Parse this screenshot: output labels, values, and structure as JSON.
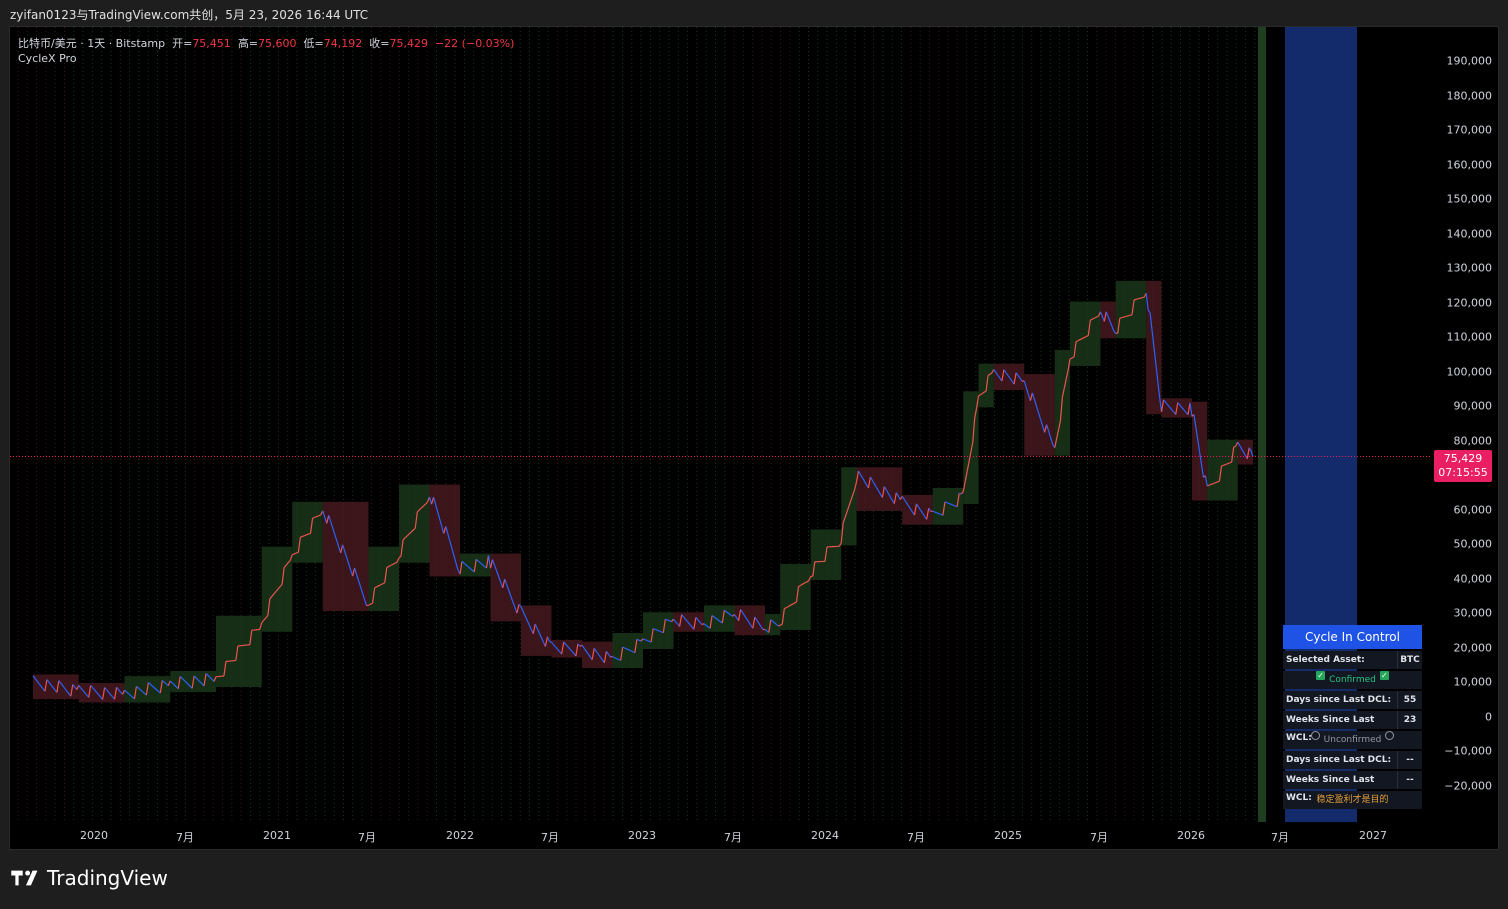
{
  "header": {
    "share_text": "zyifan0123与TradingView.com共创，5月 23, 2026 16:44 UTC"
  },
  "legend": {
    "symbol": "比特币/美元 · 1天 · Bitstamp",
    "open_label": "开=",
    "open": "75,451",
    "high_label": "高=",
    "high": "75,600",
    "low_label": "低=",
    "low": "74,192",
    "close_label": "收=",
    "close": "75,429",
    "change": "−22 (−0.03%)",
    "indicator": "CycleX Pro"
  },
  "price_axis": {
    "labels": [
      "190,000",
      "180,000",
      "170,000",
      "160,000",
      "150,000",
      "140,000",
      "130,000",
      "120,000",
      "110,000",
      "100,000",
      "90,000",
      "80,000",
      "60,000",
      "50,000",
      "40,000",
      "30,000",
      "20,000",
      "10,000",
      "0",
      "−10,000",
      "−20,000"
    ],
    "last_price": "75,429",
    "countdown": "07:15:55",
    "badge_color": "#e91e63"
  },
  "time_axis": {
    "labels": [
      "2020",
      "7月",
      "2021",
      "7月",
      "2022",
      "7月",
      "2023",
      "7月",
      "2024",
      "7月",
      "2025",
      "7月",
      "2026",
      "7月",
      "2027"
    ]
  },
  "cycle_table": {
    "title": "Cycle In Control",
    "selected_asset_label": "Selected Asset:",
    "selected_asset": "BTC",
    "confirmed_label": "Confirmed",
    "days_dcl_label": "Days since Last DCL:",
    "days_dcl": "55",
    "weeks_wcl_label": "Weeks Since Last WCL:",
    "weeks_wcl": "23",
    "unconfirmed_label": "Unconfirmed",
    "days_dcl_label_2": "Days since Last DCL:",
    "days_dcl_2": "--",
    "weeks_wcl_label_2": "Weeks Since Last WCL:",
    "weeks_wcl_2": "--",
    "motto": "稳定盈利才是目的"
  },
  "footer": {
    "brand": "TradingView"
  },
  "colors": {
    "up": "#ef5350",
    "down": "#2962ff",
    "bull_zone": "#1b3a1b",
    "bear_zone": "#4a1a1f",
    "future_zone": "#132a6b",
    "accent": "#1e53e5"
  },
  "chart_data": {
    "type": "line",
    "title": "比特币/美元 · 1天 · Bitstamp",
    "ylim": [
      -25000,
      195000
    ],
    "y_ticks": [
      190000,
      180000,
      170000,
      160000,
      150000,
      140000,
      130000,
      120000,
      110000,
      100000,
      90000,
      80000,
      60000,
      50000,
      40000,
      30000,
      20000,
      10000,
      0,
      -10000,
      -20000
    ],
    "x": [
      "2019-09",
      "2019-12",
      "2020-03",
      "2020-06",
      "2020-09",
      "2020-12",
      "2021-02",
      "2021-04",
      "2021-07",
      "2021-09",
      "2021-11",
      "2022-01",
      "2022-03",
      "2022-05",
      "2022-07",
      "2022-09",
      "2022-11",
      "2023-01",
      "2023-03",
      "2023-05",
      "2023-07",
      "2023-09",
      "2023-10",
      "2023-12",
      "2024-02",
      "2024-03",
      "2024-06",
      "2024-08",
      "2024-10",
      "2024-11",
      "2024-12",
      "2025-02",
      "2025-04",
      "2025-05",
      "2025-07",
      "2025-08",
      "2025-10",
      "2025-11",
      "2026-01",
      "2026-02",
      "2026-04",
      "2026-05"
    ],
    "series": [
      {
        "values": [
          10000,
          7500,
          6500,
          9500,
          11000,
          27000,
          47000,
          60000,
          33000,
          47000,
          65000,
          43000,
          45000,
          30000,
          20000,
          19500,
          16500,
          22000,
          28000,
          27000,
          30000,
          26000,
          27500,
          42000,
          52000,
          70000,
          62000,
          58000,
          64000,
          92000,
          100000,
          97000,
          78000,
          104000,
          118000,
          112000,
          124000,
          90000,
          89000,
          65000,
          78000,
          75429
        ]
      }
    ]
  }
}
